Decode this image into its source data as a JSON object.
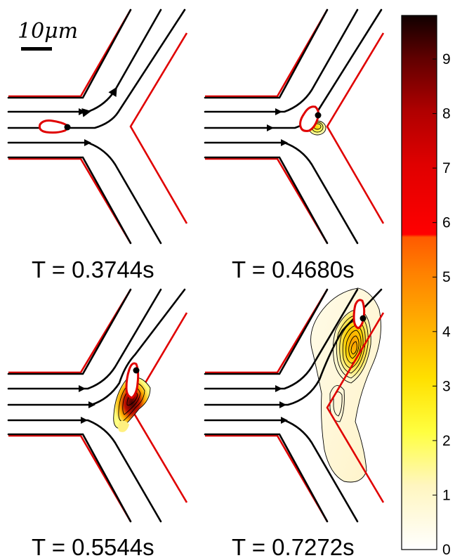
{
  "scale_bar": {
    "label": "10μm"
  },
  "panels": [
    {
      "id": "p1",
      "label": "T = 0.3744s"
    },
    {
      "id": "p2",
      "label": "T = 0.4680s"
    },
    {
      "id": "p3",
      "label": "T = 0.5544s"
    },
    {
      "id": "p4",
      "label": "T = 0.7272s"
    }
  ],
  "colorbar": {
    "ticks": [
      "0",
      "1",
      "2",
      "3",
      "4",
      "5",
      "6",
      "7",
      "8",
      "9"
    ],
    "range": [
      0,
      9.8
    ],
    "colormap": "hot (reversed)"
  },
  "colors": {
    "wall": "#e00000",
    "streamline": "#000000",
    "cell_outline": "#e00000",
    "marker": "#000000"
  }
}
